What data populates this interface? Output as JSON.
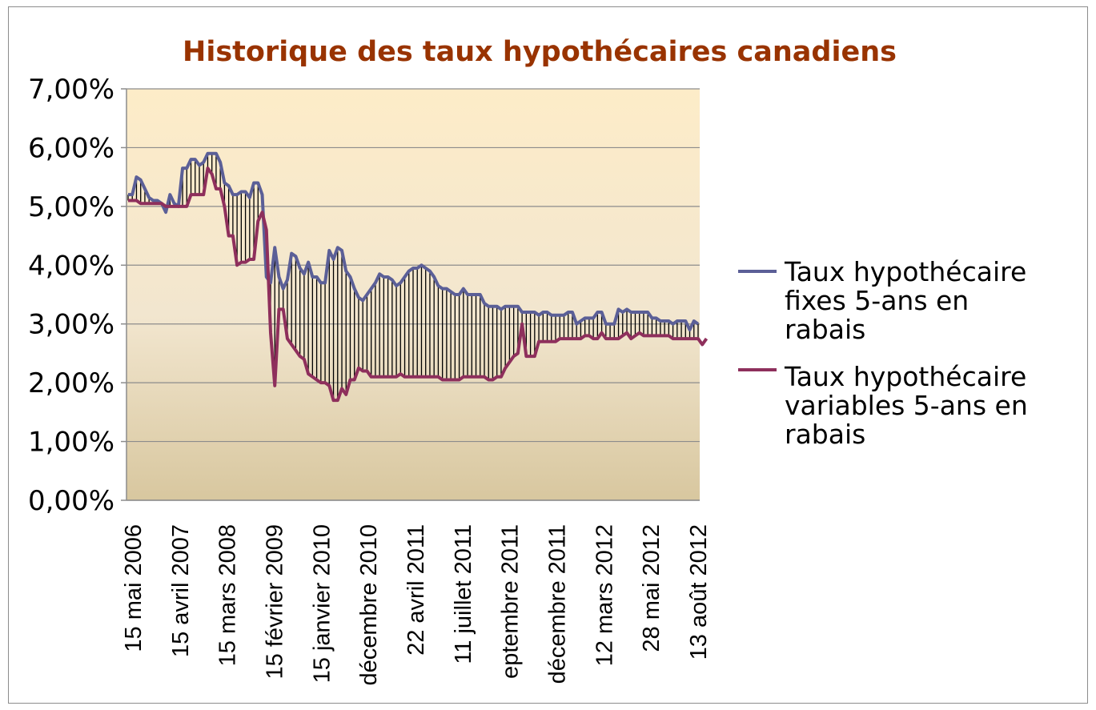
{
  "chart_data": {
    "type": "line",
    "title": "Historique des taux hypothécaires canadiens",
    "xlabel": "",
    "ylabel": "",
    "ylim": [
      0,
      7
    ],
    "y_ticks": [
      "0,00%",
      "1,00%",
      "2,00%",
      "3,00%",
      "4,00%",
      "5,00%",
      "6,00%",
      "7,00%"
    ],
    "x_tick_labels": [
      "15 mai 2006",
      "15 avril 2007",
      "15 mars 2008",
      "15 février 2009",
      "15 janvier 2010",
      "décembre 2010",
      "22 avril 2011",
      "11 juillet 2011",
      "eptembre 2011",
      "décembre 2011",
      "12 mars 2012",
      "28 mai 2012",
      "13 août 2012"
    ],
    "grid": true,
    "hi_lo_lines": true,
    "legend_position": "right",
    "series": [
      {
        "name": "Taux hypothécaire fixes 5-ans en rabais",
        "color": "#5b5f97",
        "values": [
          5.2,
          5.2,
          5.5,
          5.45,
          5.3,
          5.15,
          5.1,
          5.1,
          5.05,
          4.9,
          5.2,
          5.05,
          5.0,
          5.65,
          5.65,
          5.8,
          5.8,
          5.7,
          5.75,
          5.9,
          5.9,
          5.9,
          5.75,
          5.4,
          5.35,
          5.2,
          5.2,
          5.25,
          5.25,
          5.15,
          5.4,
          5.4,
          5.2,
          3.8,
          3.7,
          4.3,
          3.8,
          3.6,
          3.75,
          4.2,
          4.15,
          3.95,
          3.85,
          4.05,
          3.8,
          3.8,
          3.7,
          3.7,
          4.25,
          4.1,
          4.3,
          4.25,
          3.9,
          3.8,
          3.6,
          3.45,
          3.4,
          3.5,
          3.6,
          3.7,
          3.85,
          3.8,
          3.8,
          3.75,
          3.65,
          3.7,
          3.8,
          3.9,
          3.95,
          3.95,
          4.0,
          3.95,
          3.9,
          3.8,
          3.65,
          3.6,
          3.6,
          3.55,
          3.5,
          3.5,
          3.6,
          3.5,
          3.5,
          3.5,
          3.5,
          3.35,
          3.3,
          3.3,
          3.3,
          3.25,
          3.3,
          3.3,
          3.3,
          3.3,
          3.2,
          3.2,
          3.2,
          3.2,
          3.15,
          3.2,
          3.2,
          3.15,
          3.15,
          3.15,
          3.15,
          3.2,
          3.2,
          3.0,
          3.05,
          3.1,
          3.1,
          3.1,
          3.2,
          3.2,
          3.0,
          3.0,
          3.0,
          3.25,
          3.2,
          3.25,
          3.2,
          3.2,
          3.2,
          3.2,
          3.2,
          3.1,
          3.1,
          3.05,
          3.05,
          3.05,
          3.0,
          3.05,
          3.05,
          3.05,
          2.9,
          3.05,
          3.0
        ]
      },
      {
        "name": "Taux hypothécaire variables 5-ans en rabais",
        "color": "#8e2f5c",
        "values": [
          5.1,
          5.1,
          5.1,
          5.05,
          5.05,
          5.05,
          5.05,
          5.05,
          5.05,
          5.0,
          5.0,
          5.0,
          5.0,
          5.0,
          5.0,
          5.2,
          5.2,
          5.2,
          5.2,
          5.65,
          5.55,
          5.3,
          5.3,
          5.0,
          4.5,
          4.5,
          4.0,
          4.05,
          4.05,
          4.1,
          4.1,
          4.75,
          4.9,
          4.6,
          2.85,
          1.95,
          3.25,
          3.25,
          2.75,
          2.65,
          2.55,
          2.45,
          2.4,
          2.15,
          2.1,
          2.05,
          2.0,
          2.0,
          1.95,
          1.7,
          1.7,
          1.9,
          1.8,
          2.05,
          2.05,
          2.25,
          2.2,
          2.2,
          2.1,
          2.1,
          2.1,
          2.1,
          2.1,
          2.1,
          2.1,
          2.15,
          2.1,
          2.1,
          2.1,
          2.1,
          2.1,
          2.1,
          2.1,
          2.1,
          2.1,
          2.05,
          2.05,
          2.05,
          2.05,
          2.05,
          2.1,
          2.1,
          2.1,
          2.1,
          2.1,
          2.1,
          2.05,
          2.05,
          2.1,
          2.1,
          2.25,
          2.35,
          2.45,
          2.5,
          3.0,
          2.45,
          2.45,
          2.45,
          2.7,
          2.7,
          2.7,
          2.7,
          2.7,
          2.75,
          2.75,
          2.75,
          2.75,
          2.75,
          2.75,
          2.8,
          2.8,
          2.75,
          2.75,
          2.85,
          2.75,
          2.75,
          2.75,
          2.75,
          2.8,
          2.85,
          2.75,
          2.8,
          2.85,
          2.8,
          2.8,
          2.8,
          2.8,
          2.8,
          2.8,
          2.8,
          2.75,
          2.75,
          2.75,
          2.75,
          2.75,
          2.75,
          2.75,
          2.65,
          2.75
        ]
      }
    ]
  }
}
